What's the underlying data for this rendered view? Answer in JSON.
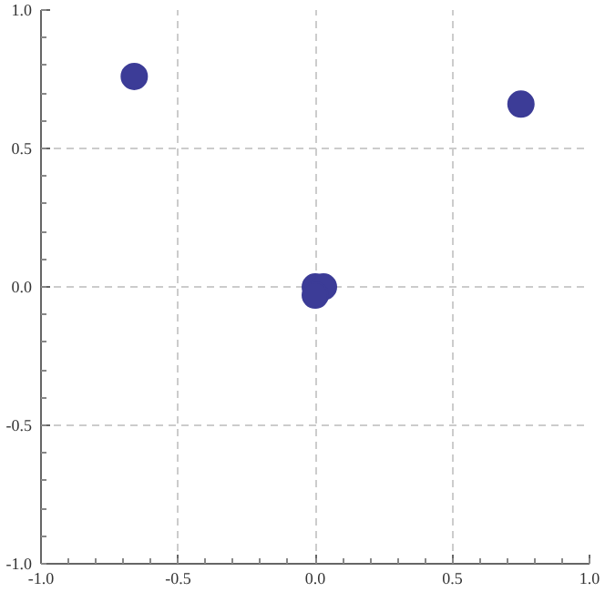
{
  "chart_data": {
    "type": "scatter",
    "x": [
      -0.66,
      0.75,
      0.0,
      0.03,
      0.0
    ],
    "series": [
      {
        "color": "#3c3c97",
        "values": [
          0.76,
          0.66,
          0.0,
          0.0,
          -0.03
        ]
      }
    ],
    "xlim": [
      -1,
      1
    ],
    "ylim": [
      -1,
      1
    ],
    "xticks": [
      {
        "value": -1,
        "label": "-1.0"
      },
      -0.5,
      {
        "value": 0,
        "label": "0.0"
      },
      0.5,
      {
        "value": 1,
        "label": "1.0"
      }
    ],
    "yticks": [
      {
        "value": -1,
        "label": "-1.0"
      },
      -0.5,
      {
        "value": 0,
        "label": "0.0"
      },
      0.5,
      {
        "value": 1,
        "label": "1.0"
      }
    ],
    "grid": true,
    "marker": "circle"
  }
}
